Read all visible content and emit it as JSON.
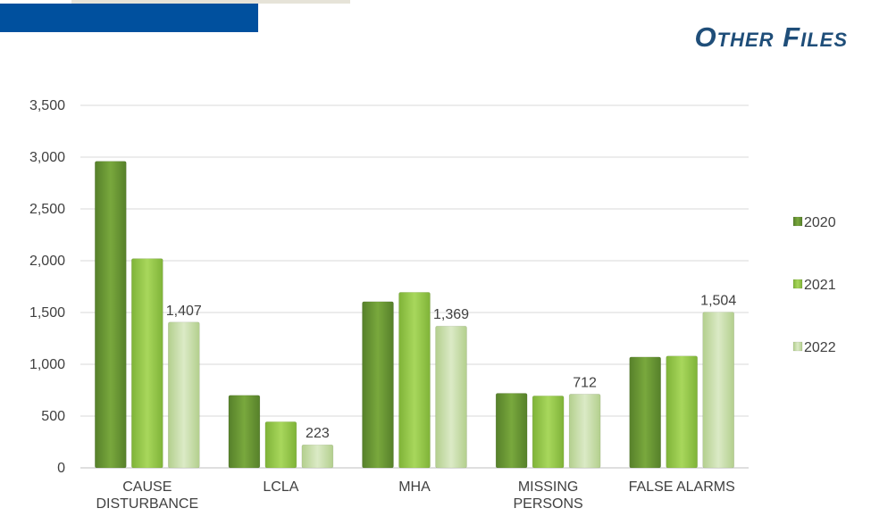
{
  "header": {
    "title": "Other Files"
  },
  "colors": {
    "header_bar": "#00509e",
    "title": "#1f4e79",
    "series_2020": "#6b9a35",
    "series_2021": "#9acd4e",
    "series_2022": "#c8dfa8"
  },
  "chart_data": {
    "type": "bar",
    "title": "",
    "xlabel": "",
    "ylabel": "",
    "ylim": [
      0,
      3500
    ],
    "yticks": [
      0,
      500,
      1000,
      1500,
      2000,
      2500,
      3000,
      3500
    ],
    "ytick_labels": [
      "0",
      "500",
      "1,000",
      "1,500",
      "2,000",
      "2,500",
      "3,000",
      "3,500"
    ],
    "grid": true,
    "legend_position": "right",
    "categories": [
      [
        "CAUSE",
        "DISTURBANCE"
      ],
      [
        "LCLA"
      ],
      [
        "MHA"
      ],
      [
        "MISSING",
        "PERSONS"
      ],
      [
        "FALSE ALARMS"
      ]
    ],
    "series": [
      {
        "name": "2020",
        "values": [
          2960,
          700,
          1605,
          720,
          1070
        ]
      },
      {
        "name": "2021",
        "values": [
          2020,
          445,
          1695,
          695,
          1080
        ]
      },
      {
        "name": "2022",
        "values": [
          1407,
          223,
          1369,
          712,
          1504
        ]
      }
    ],
    "data_labels": {
      "series": "2022",
      "labels": [
        "1,407",
        "223",
        "1,369",
        "712",
        "1,504"
      ]
    }
  }
}
